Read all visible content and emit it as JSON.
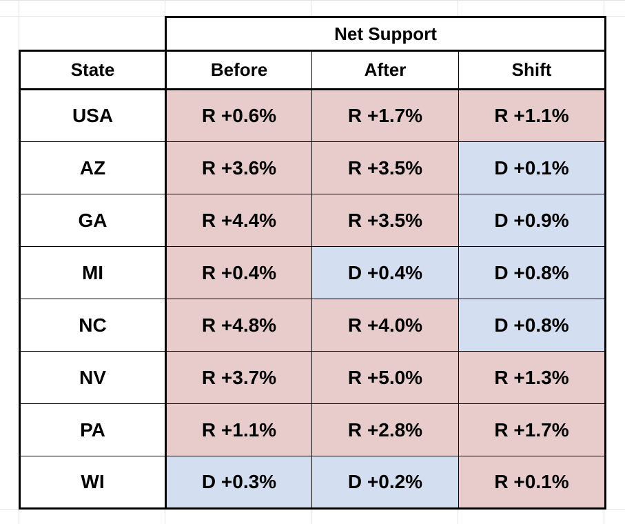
{
  "chart_data": {
    "type": "table",
    "group_header": "Net Support",
    "columns": [
      "State",
      "Before",
      "After",
      "Shift"
    ],
    "rows": [
      {
        "state": "USA",
        "before": "R +0.6%",
        "after": "R +1.7%",
        "shift": "R +1.1%"
      },
      {
        "state": "AZ",
        "before": "R +3.6%",
        "after": "R +3.5%",
        "shift": "D +0.1%"
      },
      {
        "state": "GA",
        "before": "R +4.4%",
        "after": "R +3.5%",
        "shift": "D +0.9%"
      },
      {
        "state": "MI",
        "before": "R +0.4%",
        "after": "D +0.4%",
        "shift": "D +0.8%"
      },
      {
        "state": "NC",
        "before": "R +4.8%",
        "after": "R +4.0%",
        "shift": "D +0.8%"
      },
      {
        "state": "NV",
        "before": "R +3.7%",
        "after": "R +5.0%",
        "shift": "R +1.3%"
      },
      {
        "state": "PA",
        "before": "R +1.1%",
        "after": "R +2.8%",
        "shift": "R +1.7%"
      },
      {
        "state": "WI",
        "before": "D +0.3%",
        "after": "D +0.2%",
        "shift": "R +0.1%"
      }
    ],
    "colors": {
      "R": "#e8cbcb",
      "D": "#d3dff0"
    }
  }
}
